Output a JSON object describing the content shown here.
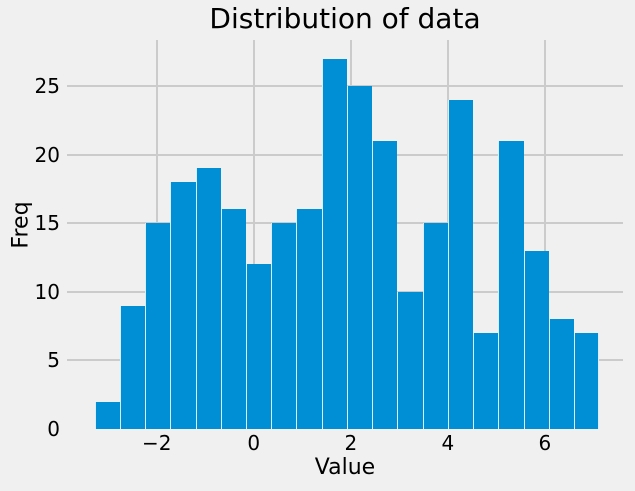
{
  "chart_data": {
    "type": "bar",
    "subtype": "histogram",
    "title": "Distribution of data",
    "xlabel": "Value",
    "ylabel": "Freq",
    "bin_start": -3.28,
    "bin_width": 0.52,
    "values": [
      2,
      9,
      15,
      18,
      19,
      16,
      12,
      15,
      16,
      27,
      25,
      21,
      10,
      15,
      24,
      7,
      21,
      13,
      8,
      7
    ],
    "xticks": [
      -2,
      0,
      2,
      4,
      6
    ],
    "yticks": [
      0,
      5,
      10,
      15,
      20,
      25
    ],
    "xlim": [
      -3.85,
      7.61
    ],
    "ylim": [
      0,
      28.35
    ],
    "grid": true,
    "legend": "none",
    "colors": {
      "bar": "#008fd5",
      "background": "#f0f0f0",
      "grid": "#cbcbcb",
      "text": "#000000"
    }
  }
}
